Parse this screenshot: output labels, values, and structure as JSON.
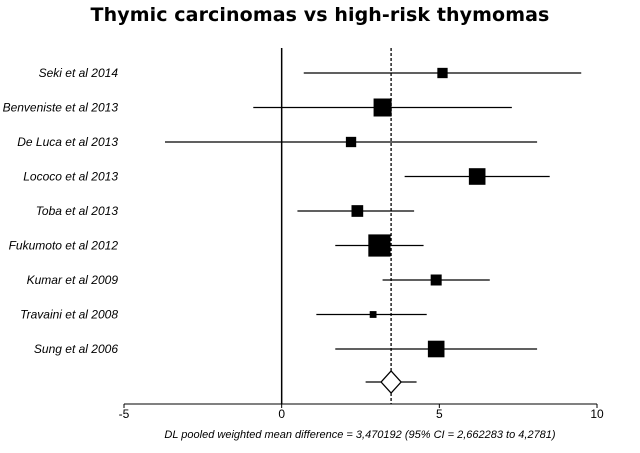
{
  "chart_data": {
    "type": "forest",
    "title": "Thymic carcinomas vs high-risk thymomas",
    "studies": [
      {
        "label": "Seki et al 2014",
        "estimate": 5.1,
        "ci": [
          0.7,
          9.5
        ],
        "weight": 0.45
      },
      {
        "label": "Benveniste et al 2013",
        "estimate": 3.2,
        "ci": [
          -0.9,
          7.3
        ],
        "weight": 1.0
      },
      {
        "label": "De Luca et al 2013",
        "estimate": 2.2,
        "ci": [
          -3.7,
          8.1
        ],
        "weight": 0.45
      },
      {
        "label": "Lococo et al 2013",
        "estimate": 6.2,
        "ci": [
          3.9,
          8.5
        ],
        "weight": 0.9
      },
      {
        "label": "Toba et al 2013",
        "estimate": 2.4,
        "ci": [
          0.5,
          4.2
        ],
        "weight": 0.55
      },
      {
        "label": "Fukumoto et al 2012",
        "estimate": 3.1,
        "ci": [
          1.7,
          4.5
        ],
        "weight": 1.3
      },
      {
        "label": "Kumar et al 2009",
        "estimate": 4.9,
        "ci": [
          3.2,
          6.6
        ],
        "weight": 0.5
      },
      {
        "label": "Travaini et al 2008",
        "estimate": 2.9,
        "ci": [
          1.1,
          4.6
        ],
        "weight": 0.2
      },
      {
        "label": "Sung et al 2006",
        "estimate": 4.9,
        "ci": [
          1.7,
          8.1
        ],
        "weight": 0.9
      }
    ],
    "pooled": {
      "estimate": 3.470192,
      "ci": [
        2.662283,
        4.2781
      ]
    },
    "x_ticks": [
      "-5",
      "0",
      "5",
      "10"
    ],
    "xlim": [
      -5,
      10
    ],
    "null_line": 0,
    "summary_text": "DL pooled weighted mean difference = 3,470192  (95% CI = 2,662283 to 4,2781)"
  },
  "colors": {
    "ink": "#000000",
    "diamond_fill": "#ffffff",
    "background": "#ffffff"
  }
}
